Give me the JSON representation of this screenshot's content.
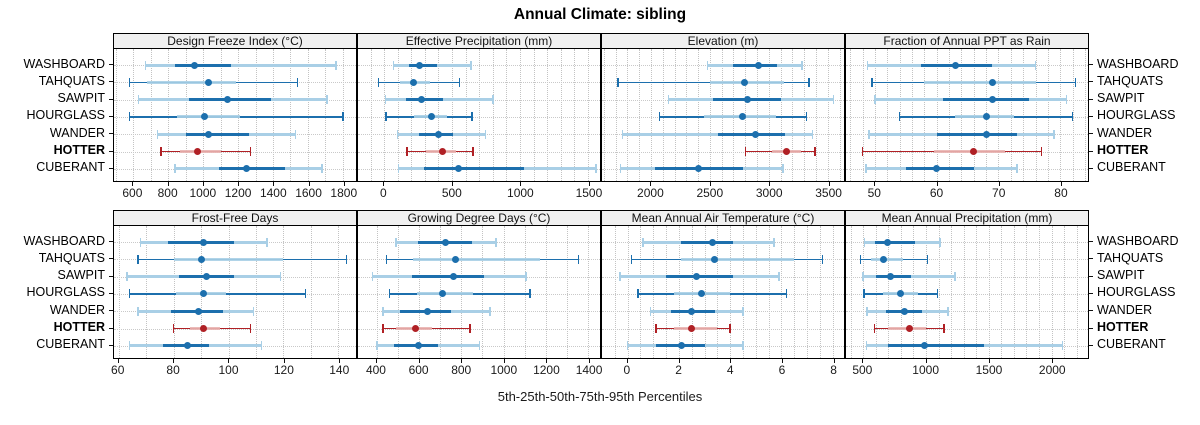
{
  "title": "Annual Climate: sibling",
  "caption": "5th-25th-50th-75th-95th Percentiles",
  "sites": [
    "WASHBOARD",
    "TAHQUATS",
    "SAWPIT",
    "HOURGLASS",
    "WANDER",
    "HOTTER",
    "CUBERANT"
  ],
  "highlight_site": "HOTTER",
  "colors": {
    "blue_dark": "#1c6fad",
    "blue_light": "#a9cfe6",
    "red_dark": "#b02025",
    "red_light": "#e9b4b1",
    "grid": "#c9c9c9",
    "strip_bg": "#f0f0f0",
    "border": "#000000"
  },
  "chart_data": {
    "type": "interval-dotplot",
    "note": "Each row shows 5th, 25th, 50th, 75th, 95th percentiles per site; HOTTER highlighted in red",
    "percentile_labels": [
      "5th",
      "25th",
      "50th",
      "75th",
      "95th"
    ],
    "legend_position": "none",
    "grid": "dotted",
    "panels": [
      {
        "title": "Design Freeze Index (°C)",
        "row": 0,
        "col": 0,
        "domain": [
          490,
          1875
        ],
        "ticks": [
          600,
          800,
          1000,
          1200,
          1400,
          1600,
          1800
        ],
        "tick_labels": [
          "600",
          "800",
          "1000",
          "1200",
          "1400",
          "1600",
          "1800"
        ],
        "gridlines": {
          "from": 500,
          "to": 1800,
          "step": 100
        },
        "series": [
          [
            670,
            840,
            950,
            1160,
            1760
          ],
          [
            580,
            680,
            1030,
            1190,
            1540
          ],
          [
            630,
            920,
            1140,
            1390,
            1710
          ],
          [
            580,
            850,
            1010,
            1210,
            1800
          ],
          [
            740,
            900,
            1030,
            1260,
            1530
          ],
          [
            760,
            870,
            970,
            1100,
            1270
          ],
          [
            840,
            1090,
            1250,
            1470,
            1680
          ]
        ]
      },
      {
        "title": "Effective Precipitation (mm)",
        "row": 0,
        "col": 1,
        "domain": [
          -192,
          1588
        ],
        "ticks": [
          0,
          500,
          1000,
          1500
        ],
        "tick_labels": [
          "0",
          "500",
          "1000",
          "1500"
        ],
        "gridlines": {
          "from": -100,
          "to": 1500,
          "step": 100
        },
        "series": [
          [
            70,
            180,
            260,
            390,
            640
          ],
          [
            -40,
            120,
            215,
            340,
            555
          ],
          [
            10,
            160,
            275,
            430,
            800
          ],
          [
            15,
            220,
            350,
            460,
            645
          ],
          [
            100,
            260,
            400,
            510,
            745
          ],
          [
            170,
            310,
            430,
            530,
            655
          ],
          [
            105,
            290,
            545,
            1030,
            1560
          ]
        ]
      },
      {
        "title": "Elevation (m)",
        "row": 0,
        "col": 2,
        "domain": [
          1584,
          3638
        ],
        "ticks": [
          2000,
          2500,
          3000,
          3500
        ],
        "tick_labels": [
          "2000",
          "2500",
          "3000",
          "3500"
        ],
        "gridlines": {
          "from": 1600,
          "to": 3600,
          "step": 100
        },
        "series": [
          [
            2480,
            2700,
            2910,
            3070,
            3280
          ],
          [
            1720,
            2500,
            2790,
            3130,
            3340
          ],
          [
            2150,
            2530,
            2820,
            3100,
            3550
          ],
          [
            2070,
            2450,
            2780,
            3060,
            3320
          ],
          [
            1760,
            2570,
            2890,
            3140,
            3370
          ],
          [
            2800,
            3030,
            3150,
            3270,
            3390
          ],
          [
            1740,
            2030,
            2400,
            2780,
            3120
          ]
        ]
      },
      {
        "title": "Fraction of Annual PPT as Rain",
        "row": 0,
        "col": 3,
        "domain": [
          45.3,
          84.5
        ],
        "ticks": [
          50,
          60,
          70,
          80
        ],
        "tick_labels": [
          "50",
          "60",
          "70",
          "80"
        ],
        "gridlines": {
          "from": 46,
          "to": 84,
          "step": 2
        },
        "series": [
          [
            48.8,
            57.5,
            63,
            69,
            76
          ],
          [
            49.5,
            58,
            69,
            76,
            82.5
          ],
          [
            50,
            61,
            69,
            75,
            81
          ],
          [
            54,
            63,
            68,
            72.5,
            82
          ],
          [
            49,
            60,
            68,
            73,
            79
          ],
          [
            48,
            59.5,
            66,
            71,
            77
          ],
          [
            48.5,
            55,
            60,
            66,
            73
          ]
        ]
      },
      {
        "title": "Frost-Free Days",
        "row": 1,
        "col": 0,
        "domain": [
          58.3,
          146.4
        ],
        "ticks": [
          60,
          80,
          100,
          120,
          140
        ],
        "tick_labels": [
          "60",
          "80",
          "100",
          "120",
          "140"
        ],
        "gridlines": {
          "from": 60,
          "to": 140,
          "step": 10
        },
        "series": [
          [
            68,
            78,
            91,
            102,
            114
          ],
          [
            67,
            80,
            90,
            120,
            143
          ],
          [
            63,
            82,
            92,
            102,
            119
          ],
          [
            64,
            81,
            91,
            99,
            128
          ],
          [
            67,
            79,
            89,
            98,
            109
          ],
          [
            80,
            86,
            91,
            97,
            108
          ],
          [
            64,
            76,
            85,
            93,
            112
          ]
        ]
      },
      {
        "title": "Growing Degree Days (°C)",
        "row": 1,
        "col": 1,
        "domain": [
          311,
          1456
        ],
        "ticks": [
          400,
          600,
          800,
          1000,
          1200,
          1400
        ],
        "tick_labels": [
          "400",
          "600",
          "800",
          "1000",
          "1200",
          "1400"
        ],
        "gridlines": {
          "from": 400,
          "to": 1400,
          "step": 100
        },
        "series": [
          [
            490,
            595,
            725,
            850,
            965
          ],
          [
            445,
            570,
            770,
            1170,
            1355
          ],
          [
            380,
            565,
            765,
            905,
            1105
          ],
          [
            460,
            590,
            710,
            855,
            1125
          ],
          [
            430,
            510,
            640,
            750,
            935
          ],
          [
            430,
            490,
            585,
            660,
            840
          ],
          [
            400,
            480,
            595,
            690,
            885
          ]
        ]
      },
      {
        "title": "Mean Annual Air Temperature (°C)",
        "row": 1,
        "col": 2,
        "domain": [
          -1.0,
          8.44
        ],
        "ticks": [
          0,
          2,
          4,
          6,
          8
        ],
        "tick_labels": [
          "0",
          "2",
          "4",
          "6",
          "8"
        ],
        "gridlines": {
          "from": -0.5,
          "to": 8,
          "step": 0.5
        },
        "series": [
          [
            0.6,
            2.1,
            3.3,
            4.1,
            5.7
          ],
          [
            0.15,
            2.1,
            3.4,
            6.5,
            7.6
          ],
          [
            -0.3,
            1.5,
            2.7,
            4.1,
            5.9
          ],
          [
            0.4,
            1.8,
            2.9,
            4.0,
            6.2
          ],
          [
            0.9,
            1.7,
            2.5,
            3.4,
            4.5
          ],
          [
            1.1,
            1.8,
            2.5,
            3.5,
            4.0
          ],
          [
            0.0,
            1.1,
            2.1,
            3.0,
            4.5
          ]
        ]
      },
      {
        "title": "Mean Annual Precipitation (mm)",
        "row": 1,
        "col": 3,
        "domain": [
          363,
          2290
        ],
        "ticks": [
          500,
          1000,
          1500,
          2000
        ],
        "tick_labels": [
          "500",
          "1000",
          "1500",
          "2000"
        ],
        "gridlines": {
          "from": 400,
          "to": 2200,
          "step": 100
        },
        "series": [
          [
            510,
            590,
            690,
            910,
            1110
          ],
          [
            480,
            560,
            665,
            820,
            1010
          ],
          [
            500,
            600,
            715,
            880,
            1230
          ],
          [
            505,
            660,
            800,
            940,
            1090
          ],
          [
            530,
            680,
            830,
            970,
            1175
          ],
          [
            590,
            700,
            865,
            1000,
            1145
          ],
          [
            525,
            700,
            990,
            1460,
            2085
          ]
        ]
      }
    ]
  }
}
